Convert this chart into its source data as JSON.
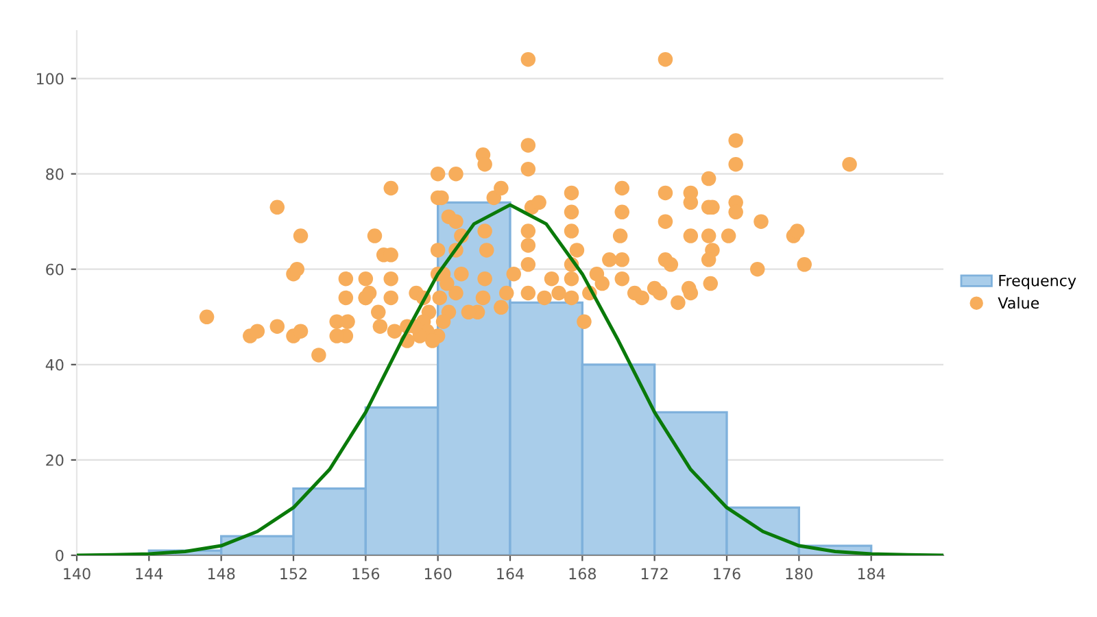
{
  "chart_data": {
    "type": "histogram",
    "bins": [
      144,
      148,
      152,
      156,
      160,
      164,
      168,
      172,
      176,
      180,
      184
    ],
    "xlim": [
      140,
      188
    ],
    "xticks": [
      140,
      144,
      148,
      152,
      156,
      160,
      164,
      168,
      172,
      176,
      180,
      184
    ],
    "ylim": [
      0,
      110
    ],
    "yticks": [
      0,
      20,
      40,
      60,
      80,
      100
    ],
    "grid": "y",
    "legend": "right",
    "series": [
      {
        "name": "Frequency",
        "color": "#a9cdea",
        "values": [
          1,
          4,
          14,
          31,
          74,
          53,
          40,
          30,
          10,
          2
        ]
      },
      {
        "type": "scatter",
        "name": "Value",
        "color": "#f7ad5b",
        "marker": "circle",
        "x": [
          147.2,
          149.6,
          150.0,
          151.1,
          151.1,
          152.0,
          152.2,
          152.4,
          152.0,
          152.4,
          153.4,
          154.4,
          155.0,
          154.9,
          154.4,
          154.9,
          154.9,
          156.0,
          156.5,
          156.0,
          156.2,
          156.0,
          157.4,
          157.0,
          157.4,
          157.4,
          157.4,
          158.3,
          156.8,
          158.8,
          159.2,
          160.0,
          161.0,
          160.0,
          160.2,
          160.0,
          160.0,
          162.5,
          162.6,
          165.0,
          165.0,
          165.0,
          167.4,
          167.4,
          167.4,
          170.2,
          170.2,
          172.6,
          172.6,
          172.6,
          172.6,
          172.9,
          174.0,
          174.0,
          175.0,
          175.0,
          175.2,
          174.0,
          175.0,
          175.2,
          175.0,
          176.5,
          176.5,
          176.5,
          176.5,
          176.1,
          177.9,
          177.7,
          179.7,
          179.9,
          180.3,
          182.8,
          175.1,
          173.9,
          174.0,
          173.3,
          172.0,
          172.3,
          171.3,
          170.9,
          170.2,
          170.2,
          170.1,
          169.5,
          169.1,
          168.8,
          168.4,
          168.1,
          167.4,
          167.4,
          167.4,
          167.7,
          166.3,
          166.7,
          165.9,
          165.0,
          165.0,
          165.0,
          165.0,
          165.2,
          165.6,
          164.2,
          163.8,
          163.5,
          163.1,
          163.5,
          162.6,
          162.7,
          162.6,
          162.5,
          162.2,
          161.3,
          161.0,
          161.3,
          161.0,
          161.7,
          160.6,
          161.0,
          160.3,
          160.5,
          160.1,
          160.6,
          160.3,
          160.0,
          159.5,
          159.2,
          159.4,
          159.7,
          159.0,
          158.7,
          158.3,
          157.6,
          156.7
        ],
        "values": [
          50,
          46,
          47,
          73,
          48,
          59,
          60,
          67,
          46,
          47,
          42,
          49,
          49,
          46,
          46,
          58,
          54,
          54,
          67,
          54,
          55,
          58,
          77,
          63,
          63,
          58,
          54,
          48,
          48,
          55,
          54,
          80,
          80,
          75,
          75,
          64,
          59,
          84,
          82,
          104,
          86,
          81,
          76,
          72,
          68,
          77,
          72,
          104,
          76,
          70,
          62,
          61,
          76,
          74,
          79,
          73,
          73,
          67,
          67,
          64,
          62,
          82,
          87,
          74,
          72,
          67,
          70,
          60,
          67,
          68,
          61,
          82,
          57,
          56,
          55,
          53,
          56,
          55,
          54,
          55,
          58,
          62,
          67,
          62,
          57,
          59,
          55,
          49,
          61,
          58,
          54,
          64,
          58,
          55,
          54,
          68,
          65,
          61,
          55,
          73,
          74,
          59,
          55,
          52,
          75,
          77,
          68,
          64,
          58,
          54,
          51,
          67,
          64,
          59,
          55,
          51,
          71,
          70,
          59,
          57,
          54,
          51,
          49,
          46,
          51,
          49,
          47,
          45,
          46,
          48,
          45,
          47,
          51
        ]
      },
      {
        "type": "line",
        "color": "#0a7a0a",
        "marker": "none",
        "line_style": "solid",
        "x": [
          140,
          142,
          144,
          146,
          148,
          150,
          152,
          154,
          156,
          158,
          160,
          162,
          164,
          166,
          168,
          170,
          172,
          174,
          176,
          178,
          180,
          182,
          184,
          186,
          188
        ],
        "values": [
          0,
          0.1,
          0.3,
          0.8,
          2,
          5,
          10,
          18,
          30,
          45,
          59,
          69.5,
          73.5,
          69.5,
          59,
          45,
          30,
          18,
          10,
          5,
          2,
          0.8,
          0.3,
          0.1,
          0
        ]
      }
    ]
  }
}
